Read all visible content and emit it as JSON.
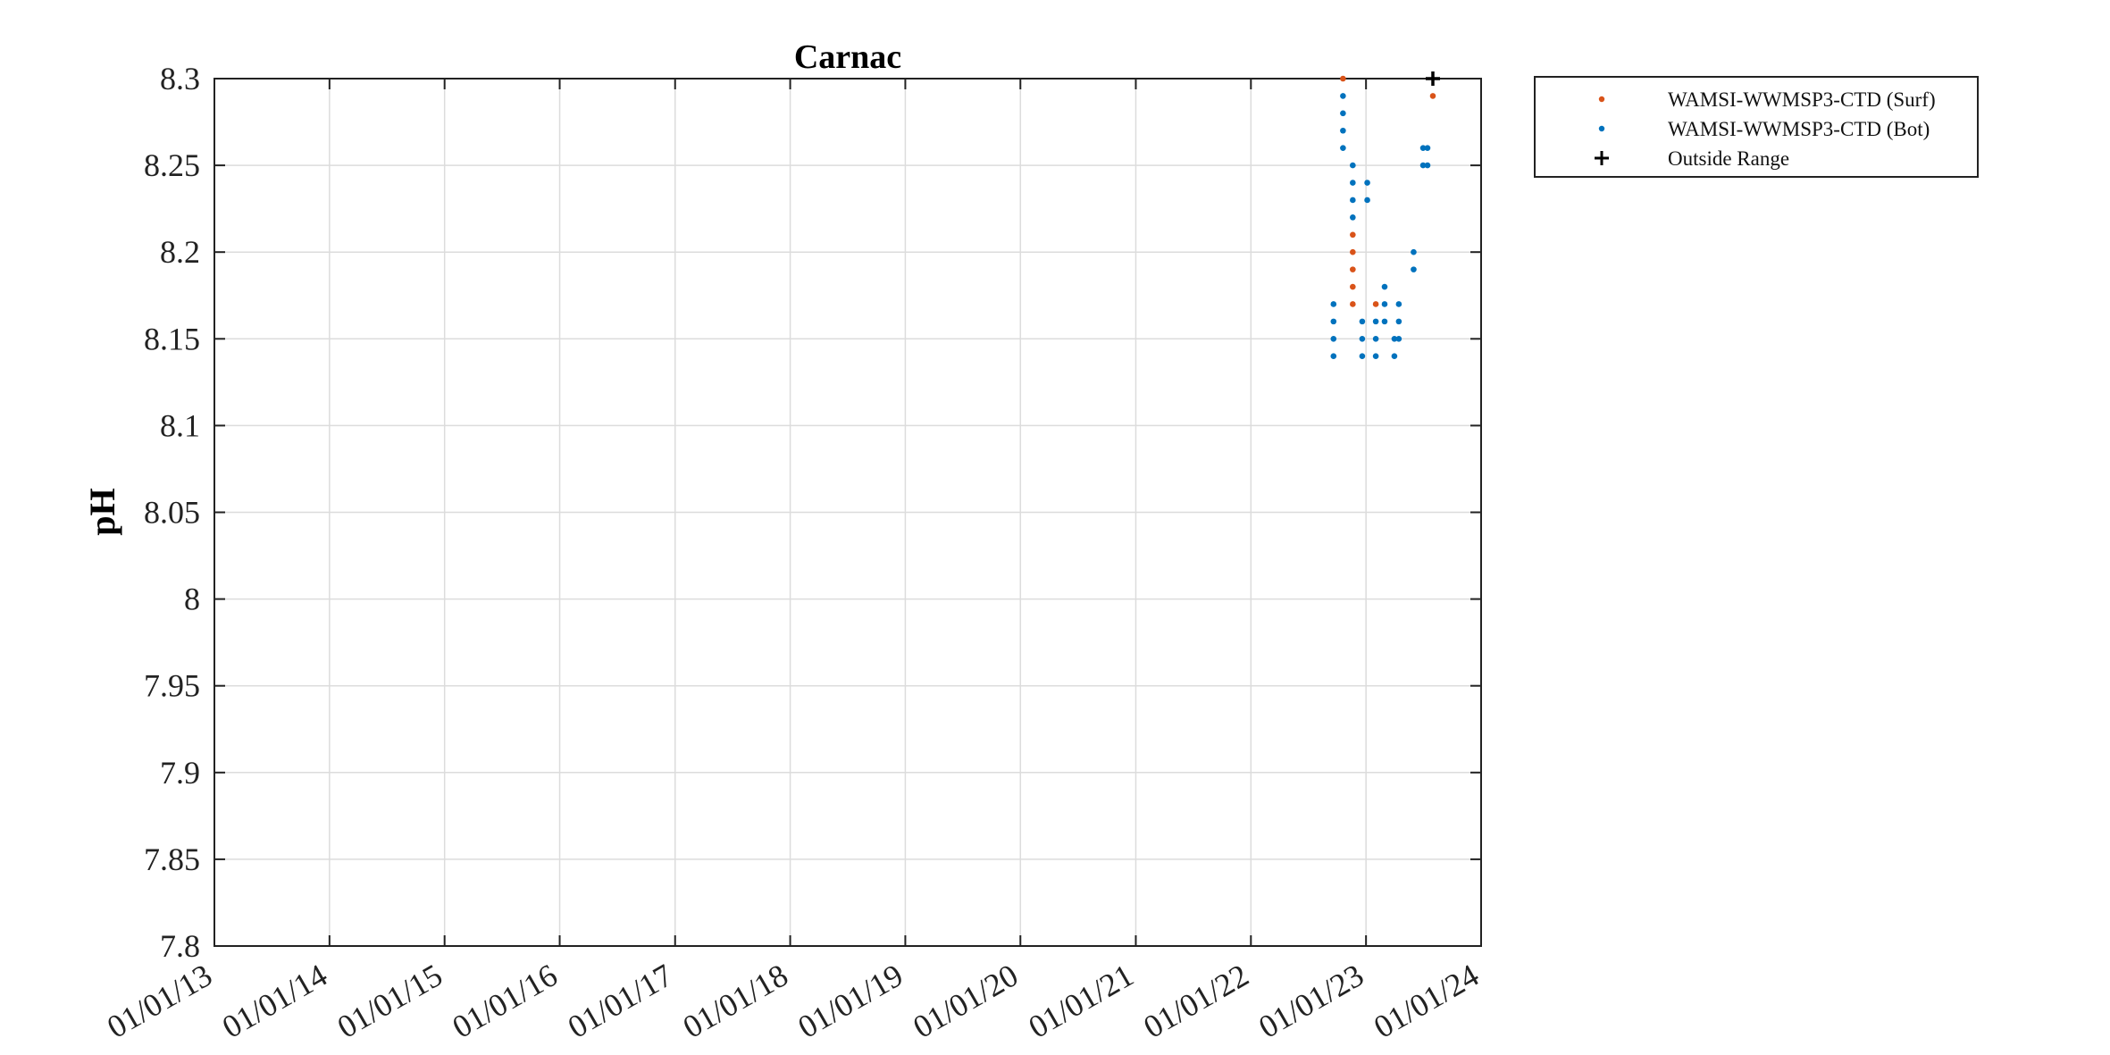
{
  "chart_data": {
    "type": "scatter",
    "title": "Carnac",
    "xlabel": "",
    "ylabel": "pH",
    "ylim": [
      7.8,
      8.3
    ],
    "xlim": [
      "2013-01-01",
      "2024-01-01"
    ],
    "x_ticks": [
      "01/01/13",
      "01/01/14",
      "01/01/15",
      "01/01/16",
      "01/01/17",
      "01/01/18",
      "01/01/19",
      "01/01/20",
      "01/01/21",
      "01/01/22",
      "01/01/23",
      "01/01/24"
    ],
    "y_ticks": [
      "7.8",
      "7.85",
      "7.9",
      "7.95",
      "8",
      "8.05",
      "8.1",
      "8.15",
      "8.2",
      "8.25",
      "8.3"
    ],
    "grid": true,
    "legend_position": "outside-top-right",
    "series": [
      {
        "name": "WAMSI-WWMSP3-CTD (Surf)",
        "color": "#d95319",
        "marker": "dot",
        "points": [
          [
            "2022-10-20",
            8.3
          ],
          [
            "2022-11-20",
            8.21
          ],
          [
            "2022-11-20",
            8.2
          ],
          [
            "2022-11-20",
            8.19
          ],
          [
            "2022-11-20",
            8.18
          ],
          [
            "2022-11-20",
            8.17
          ],
          [
            "2023-02-01",
            8.17
          ],
          [
            "2023-08-01",
            8.29
          ]
        ]
      },
      {
        "name": "WAMSI-WWMSP3-CTD (Bot)",
        "color": "#0072bd",
        "marker": "dot",
        "points": [
          [
            "2022-09-20",
            8.17
          ],
          [
            "2022-09-20",
            8.16
          ],
          [
            "2022-09-20",
            8.15
          ],
          [
            "2022-09-20",
            8.14
          ],
          [
            "2022-10-20",
            8.29
          ],
          [
            "2022-10-20",
            8.28
          ],
          [
            "2022-10-20",
            8.27
          ],
          [
            "2022-10-20",
            8.26
          ],
          [
            "2022-11-20",
            8.25
          ],
          [
            "2022-11-20",
            8.24
          ],
          [
            "2022-11-20",
            8.23
          ],
          [
            "2022-11-20",
            8.22
          ],
          [
            "2022-12-20",
            8.16
          ],
          [
            "2022-12-20",
            8.15
          ],
          [
            "2022-12-20",
            8.14
          ],
          [
            "2023-01-05",
            8.24
          ],
          [
            "2023-01-05",
            8.23
          ],
          [
            "2023-02-01",
            8.16
          ],
          [
            "2023-02-01",
            8.15
          ],
          [
            "2023-02-01",
            8.14
          ],
          [
            "2023-03-01",
            8.18
          ],
          [
            "2023-03-01",
            8.17
          ],
          [
            "2023-03-01",
            8.16
          ],
          [
            "2023-04-01",
            8.15
          ],
          [
            "2023-04-01",
            8.14
          ],
          [
            "2023-04-15",
            8.17
          ],
          [
            "2023-04-15",
            8.16
          ],
          [
            "2023-04-15",
            8.15
          ],
          [
            "2023-06-01",
            8.2
          ],
          [
            "2023-06-01",
            8.19
          ],
          [
            "2023-07-01",
            8.26
          ],
          [
            "2023-07-01",
            8.25
          ],
          [
            "2023-07-15",
            8.26
          ],
          [
            "2023-07-15",
            8.25
          ]
        ]
      },
      {
        "name": "Outside Range",
        "color": "#000000",
        "marker": "plus",
        "points": [
          [
            "2023-08-01",
            8.3
          ]
        ]
      }
    ]
  }
}
